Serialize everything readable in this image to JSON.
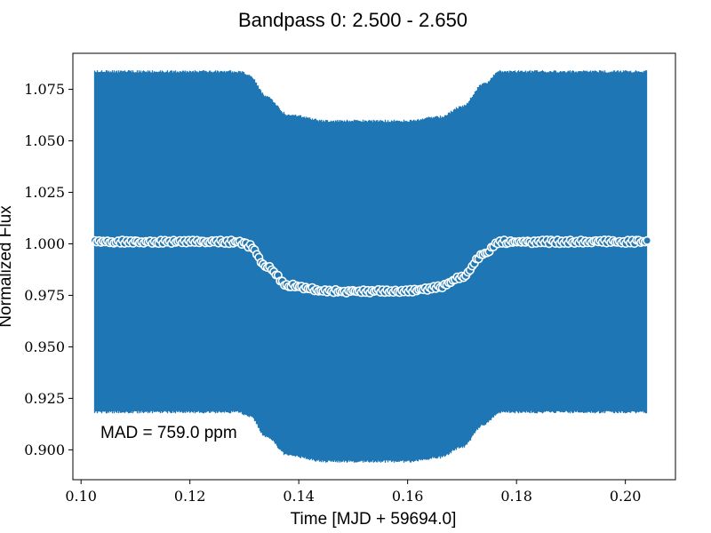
{
  "chart_data": {
    "type": "scatter",
    "title": "Bandpass 0: 2.500 - 2.650",
    "xlabel": "Time [MJD + 59694.0]",
    "ylabel": "Normalized Flux",
    "xlim": [
      0.0985,
      0.2092
    ],
    "ylim": [
      0.8855,
      1.0925
    ],
    "x_ticks": [
      0.1,
      0.12,
      0.14,
      0.16,
      0.18,
      0.2
    ],
    "x_tick_labels": [
      "0.10",
      "0.12",
      "0.14",
      "0.16",
      "0.18",
      "0.20"
    ],
    "y_ticks": [
      0.9,
      0.925,
      0.95,
      0.975,
      1.0,
      1.025,
      1.05,
      1.075
    ],
    "y_tick_labels": [
      "0.900",
      "0.925",
      "0.950",
      "0.975",
      "1.000",
      "1.025",
      "1.050",
      "1.075"
    ],
    "grid": false,
    "annotation": "MAD = 759.0 ppm",
    "series": [
      {
        "kind": "error-bars",
        "color": "#1f77b4",
        "x_range": [
          0.1025,
          0.204
        ],
        "half_width": 0.0821,
        "center_profile": [
          {
            "x": 0.1025,
            "y": 1.001
          },
          {
            "x": 0.129,
            "y": 1.001
          },
          {
            "x": 0.131,
            "y": 0.999
          },
          {
            "x": 0.134,
            "y": 0.989
          },
          {
            "x": 0.138,
            "y": 0.98
          },
          {
            "x": 0.145,
            "y": 0.977
          },
          {
            "x": 0.16,
            "y": 0.977
          },
          {
            "x": 0.166,
            "y": 0.979
          },
          {
            "x": 0.17,
            "y": 0.984
          },
          {
            "x": 0.174,
            "y": 0.995
          },
          {
            "x": 0.177,
            "y": 1.001
          },
          {
            "x": 0.204,
            "y": 1.001
          }
        ]
      },
      {
        "kind": "points",
        "fill": "#1f77b4",
        "stroke": "#ffffff",
        "x_range": [
          0.1025,
          0.204
        ],
        "count": 260,
        "profile_ref": "center_profile"
      }
    ]
  }
}
